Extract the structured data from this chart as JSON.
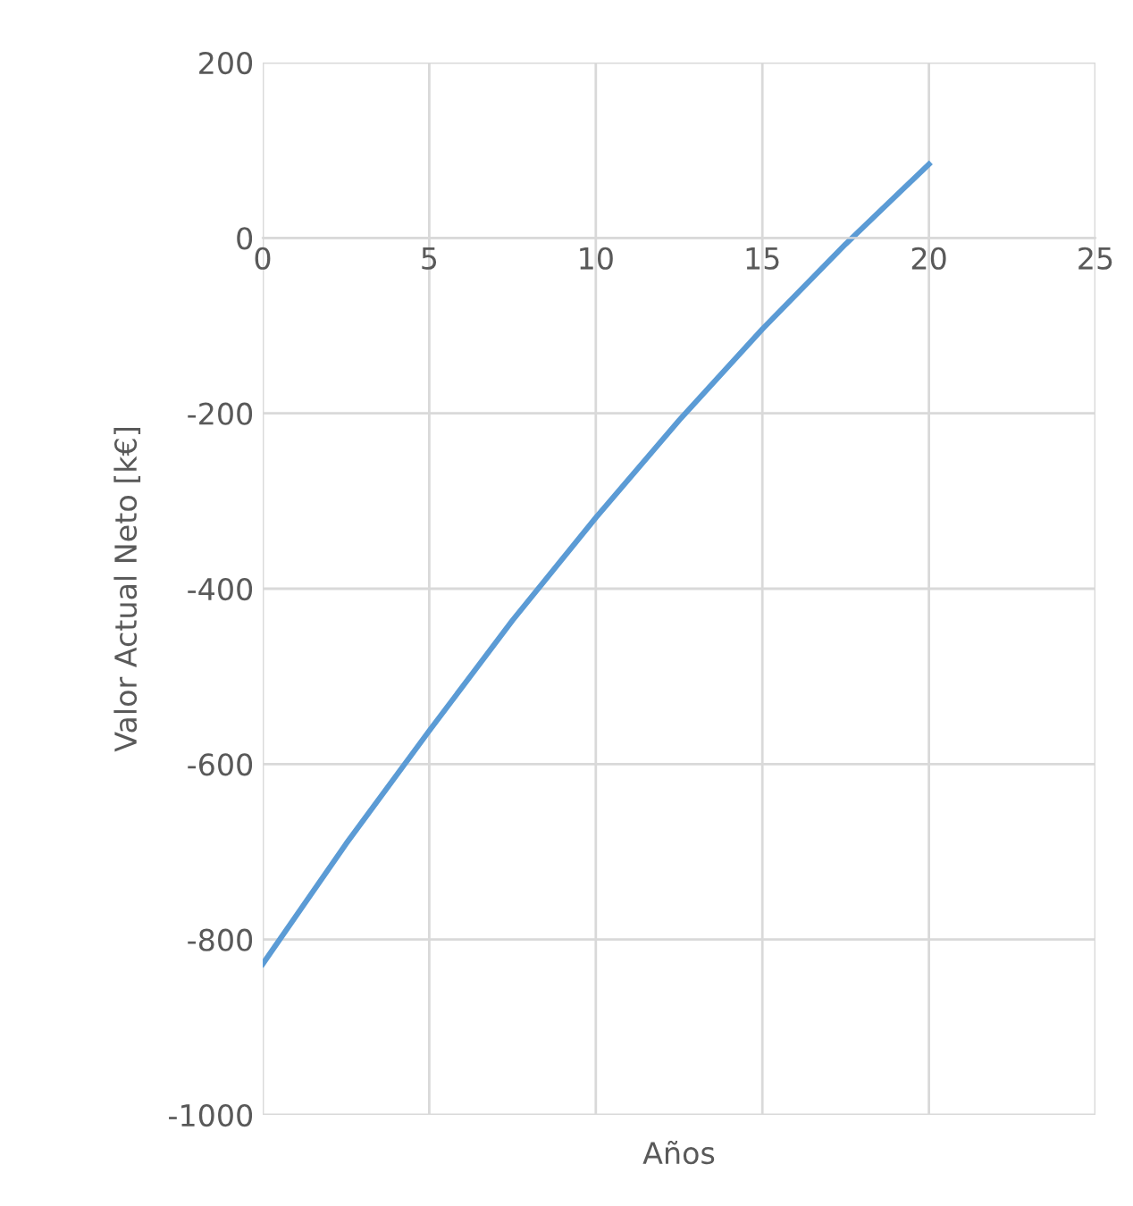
{
  "chart_data": {
    "type": "line",
    "xlabel": "Años",
    "ylabel": "Valor Actual Neto [k€]",
    "x": [
      0,
      2.5,
      5,
      7.5,
      10,
      12.5,
      15,
      17.5,
      20
    ],
    "series": [
      {
        "color": "#5b9bd5",
        "values": [
          -828,
          -691,
          -562,
          -436,
          -319,
          -208,
          -104,
          -7,
          84
        ]
      }
    ],
    "xlim": [
      0,
      25
    ],
    "xticks": [
      0,
      5,
      10,
      15,
      20,
      25
    ],
    "ylim": [
      -1000,
      200
    ],
    "yticks": [
      -1000,
      -800,
      -600,
      -400,
      -200,
      0,
      200
    ],
    "grid": true,
    "marker": "none",
    "line_style": "solid"
  }
}
